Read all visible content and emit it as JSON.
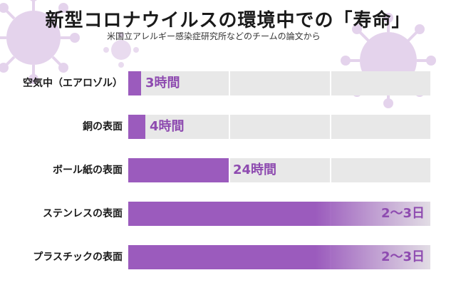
{
  "title": "新型コロナウイルスの環境中での「寿命」",
  "subtitle": "米国立アレルギー感染症研究所などのチームの論文から",
  "colors": {
    "bar": "#9b5bbd",
    "label": "#8e4bb0",
    "track": "#e8e8e8",
    "virus": "#cfb0dd"
  },
  "chart_data": {
    "type": "bar",
    "orientation": "horizontal",
    "title": "新型コロナウイルスの環境中での「寿命」",
    "subtitle": "米国立アレルギー感染症研究所などのチームの論文から",
    "unit": "時間",
    "xlim": [
      0,
      72
    ],
    "categories": [
      "空気中（エアロゾル）",
      "銅の表面",
      "ボール紙の表面",
      "ステンレスの表面",
      "プラスチックの表面"
    ],
    "values": [
      3,
      4,
      24,
      72,
      72
    ],
    "value_range_hours": [
      null,
      null,
      null,
      [
        48,
        72
      ],
      [
        48,
        72
      ]
    ],
    "data_labels": [
      "3時間",
      "4時間",
      "24時間",
      "2〜3日",
      "2〜3日"
    ],
    "grid": true,
    "legend": "none"
  }
}
